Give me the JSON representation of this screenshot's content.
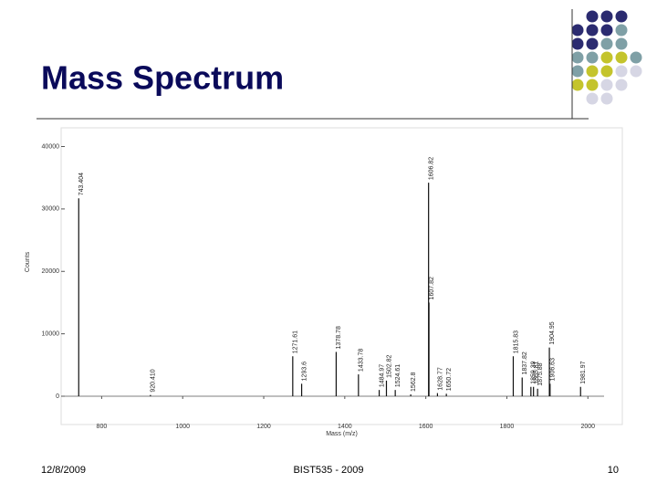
{
  "slide": {
    "title": "Mass Spectrum",
    "footer": {
      "date": "12/8/2009",
      "center": "BIST535 - 2009",
      "page": "10"
    }
  },
  "chart_data": {
    "type": "stem",
    "x_label": "Mass (m/z)",
    "y_label": "Counts",
    "color": "#111111",
    "x": [
      743.404,
      920.41,
      1271.61,
      1293.6,
      1378.78,
      1433.78,
      1484.97,
      1502.82,
      1524.61,
      1562.8,
      1606.82,
      1607.82,
      1628.77,
      1650.72,
      1815.83,
      1837.82,
      1859.39,
      1865.81,
      1875.88,
      1904.95,
      1906.63,
      1981.97
    ],
    "values": [
      31700,
      200,
      6400,
      2000,
      7100,
      3500,
      1000,
      2500,
      1000,
      300,
      34200,
      15000,
      500,
      400,
      6400,
      3000,
      1500,
      1500,
      1200,
      7800,
      2000,
      1500
    ],
    "value_labels": [
      "743.404",
      "920.410",
      "1271.61",
      "1293.6",
      "1378.78",
      "1433.78",
      "1484.97",
      "1502.82",
      "1524.61",
      "1562.8",
      "1606.82",
      "1607.82",
      "1628.77",
      "1650.72",
      "1815.83",
      "1837.82",
      "1859.39",
      "1865.81",
      "1875.88",
      "1904.95",
      "1906.63",
      "1981.97"
    ],
    "xlim": [
      700,
      2085
    ],
    "ylim": [
      0,
      43000
    ],
    "xticks": [
      800,
      1000,
      1200,
      1400,
      1600,
      1800,
      2000
    ],
    "yticks": [
      0,
      10000,
      20000,
      30000,
      40000
    ]
  }
}
